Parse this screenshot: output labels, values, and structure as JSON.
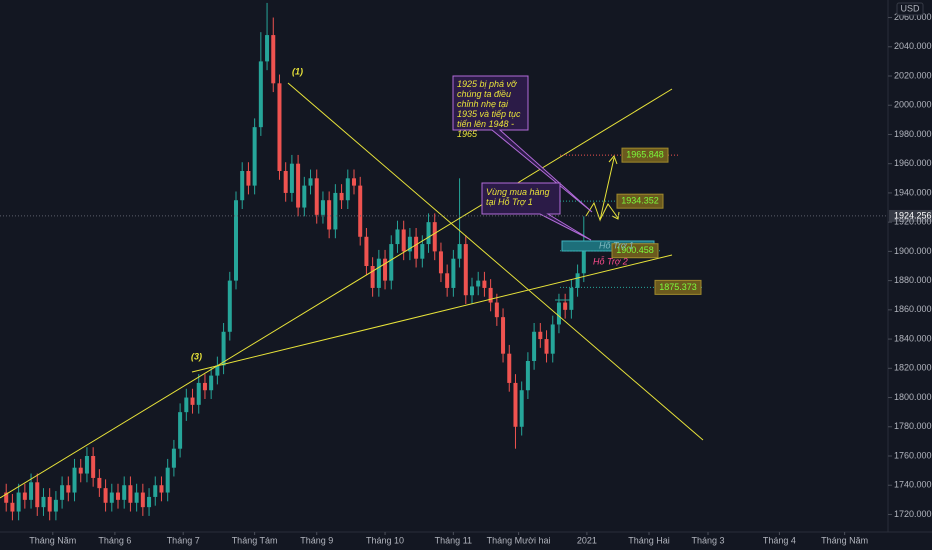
{
  "chart_data": {
    "type": "candlestick",
    "currency": "USD",
    "x": [
      2,
      4,
      6,
      8,
      10,
      12,
      14,
      16,
      18,
      20,
      22,
      24,
      26,
      28,
      30,
      32,
      34,
      36,
      38,
      40,
      42,
      44,
      46,
      48,
      50,
      52,
      54,
      56,
      58,
      60,
      62,
      64,
      66,
      68,
      70,
      72,
      74,
      76,
      78,
      80,
      82,
      84,
      86,
      88,
      90,
      92,
      94,
      96,
      98,
      100,
      102,
      104,
      106,
      108,
      110,
      112,
      114,
      116,
      118,
      120,
      122,
      124,
      126,
      128,
      130,
      132,
      134,
      136,
      138,
      140,
      142,
      144,
      146,
      148,
      150,
      152,
      154,
      156,
      158,
      160,
      162,
      164,
      166,
      168,
      170,
      172,
      174,
      176,
      178,
      180,
      182,
      184,
      186,
      188
    ],
    "open": [
      1735,
      1728,
      1722,
      1735,
      1730,
      1742,
      1725,
      1732,
      1722,
      1730,
      1740,
      1735,
      1752,
      1748,
      1760,
      1745,
      1738,
      1728,
      1735,
      1730,
      1740,
      1728,
      1735,
      1725,
      1732,
      1740,
      1735,
      1752,
      1765,
      1790,
      1800,
      1795,
      1810,
      1805,
      1815,
      1822,
      1845,
      1880,
      1935,
      1955,
      1945,
      1985,
      2030,
      2048,
      2015,
      1955,
      1940,
      1960,
      1930,
      1945,
      1950,
      1925,
      1935,
      1915,
      1940,
      1935,
      1950,
      1945,
      1910,
      1890,
      1875,
      1895,
      1880,
      1905,
      1915,
      1900,
      1910,
      1895,
      1905,
      1920,
      1900,
      1885,
      1875,
      1895,
      1905,
      1870,
      1876,
      1880,
      1875,
      1865,
      1855,
      1830,
      1810,
      1780,
      1805,
      1825,
      1845,
      1840,
      1830,
      1850,
      1865,
      1860,
      1875,
      1885
    ],
    "high": [
      1741,
      1734,
      1741,
      1741,
      1748,
      1748,
      1738,
      1738,
      1736,
      1746,
      1746,
      1758,
      1758,
      1766,
      1766,
      1751,
      1744,
      1741,
      1741,
      1746,
      1746,
      1741,
      1741,
      1738,
      1746,
      1746,
      1758,
      1771,
      1796,
      1806,
      1806,
      1816,
      1816,
      1821,
      1828,
      1851,
      1886,
      1941,
      1961,
      1961,
      1991,
      2050,
      2070,
      2060,
      2021,
      1961,
      1966,
      1966,
      1951,
      1956,
      1956,
      1941,
      1941,
      1946,
      1946,
      1956,
      1956,
      1951,
      1916,
      1896,
      1901,
      1901,
      1911,
      1921,
      1921,
      1916,
      1916,
      1911,
      1926,
      1926,
      1906,
      1891,
      1901,
      1950,
      1911,
      1882,
      1886,
      1886,
      1881,
      1871,
      1861,
      1836,
      1816,
      1811,
      1831,
      1851,
      1851,
      1846,
      1856,
      1871,
      1871,
      1881,
      1891,
      1924
    ],
    "low": [
      1722,
      1716,
      1716,
      1724,
      1724,
      1719,
      1719,
      1716,
      1716,
      1724,
      1729,
      1729,
      1742,
      1742,
      1739,
      1732,
      1722,
      1722,
      1724,
      1724,
      1722,
      1722,
      1719,
      1719,
      1726,
      1729,
      1729,
      1746,
      1759,
      1784,
      1789,
      1789,
      1799,
      1799,
      1809,
      1816,
      1839,
      1874,
      1929,
      1939,
      1939,
      1979,
      2024,
      2009,
      1949,
      1934,
      1934,
      1924,
      1924,
      1939,
      1919,
      1919,
      1909,
      1909,
      1929,
      1929,
      1939,
      1904,
      1884,
      1869,
      1869,
      1874,
      1874,
      1899,
      1894,
      1894,
      1889,
      1889,
      1899,
      1894,
      1879,
      1869,
      1869,
      1889,
      1864,
      1864,
      1870,
      1869,
      1859,
      1849,
      1824,
      1804,
      1765,
      1774,
      1799,
      1819,
      1834,
      1824,
      1824,
      1844,
      1854,
      1854,
      1869,
      1879
    ],
    "close": [
      1728,
      1722,
      1735,
      1730,
      1742,
      1725,
      1732,
      1722,
      1730,
      1740,
      1735,
      1752,
      1748,
      1760,
      1745,
      1738,
      1728,
      1735,
      1730,
      1740,
      1728,
      1735,
      1725,
      1732,
      1740,
      1735,
      1752,
      1765,
      1790,
      1800,
      1795,
      1810,
      1805,
      1815,
      1822,
      1845,
      1880,
      1935,
      1955,
      1945,
      1985,
      2030,
      2048,
      2015,
      1955,
      1940,
      1960,
      1930,
      1945,
      1950,
      1925,
      1935,
      1915,
      1940,
      1935,
      1950,
      1945,
      1910,
      1890,
      1875,
      1895,
      1880,
      1905,
      1915,
      1900,
      1910,
      1895,
      1905,
      1920,
      1900,
      1885,
      1875,
      1895,
      1905,
      1870,
      1876,
      1880,
      1875,
      1865,
      1855,
      1830,
      1810,
      1780,
      1805,
      1825,
      1845,
      1840,
      1830,
      1850,
      1865,
      1860,
      1875,
      1885,
      1905
    ],
    "up_color": "#26a69a",
    "down_color": "#ef5350",
    "xlim": [
      0,
      285
    ],
    "xticks": [
      {
        "value": 17,
        "label": "Tháng Năm"
      },
      {
        "value": 37,
        "label": "Tháng 6"
      },
      {
        "value": 59,
        "label": "Tháng 7"
      },
      {
        "value": 82,
        "label": "Tháng Tám"
      },
      {
        "value": 102,
        "label": "Tháng 9"
      },
      {
        "value": 124,
        "label": "Tháng 10"
      },
      {
        "value": 146,
        "label": "Tháng 11"
      },
      {
        "value": 167,
        "label": "Tháng Mười hai"
      },
      {
        "value": 189,
        "label": "2021"
      },
      {
        "value": 209,
        "label": "Tháng Hai"
      },
      {
        "value": 228,
        "label": "Tháng 3"
      },
      {
        "value": 251,
        "label": "Tháng 4"
      },
      {
        "value": 272,
        "label": "Tháng Năm"
      }
    ],
    "ylim": [
      1708,
      2072
    ],
    "yticks": [
      {
        "value": 1720,
        "label": "1720.000"
      },
      {
        "value": 1740,
        "label": "1740.000"
      },
      {
        "value": 1760,
        "label": "1760.000"
      },
      {
        "value": 1780,
        "label": "1780.000"
      },
      {
        "value": 1800,
        "label": "1800.000"
      },
      {
        "value": 1820,
        "label": "1820.000"
      },
      {
        "value": 1840,
        "label": "1840.000"
      },
      {
        "value": 1860,
        "label": "1860.000"
      },
      {
        "value": 1880,
        "label": "1880.000"
      },
      {
        "value": 1900,
        "label": "1900.000"
      },
      {
        "value": 1920,
        "label": "1920.000"
      },
      {
        "value": 1940,
        "label": "1940.000"
      },
      {
        "value": 1960,
        "label": "1960.000"
      },
      {
        "value": 1980,
        "label": "1980.000"
      },
      {
        "value": 2000,
        "label": "2000.000"
      },
      {
        "value": 2020,
        "label": "2020.000"
      },
      {
        "value": 2040,
        "label": "2040.000"
      },
      {
        "value": 2060,
        "label": "2060.000"
      }
    ],
    "last_price": 1924.256,
    "price_levels": [
      1965.848,
      1934.352,
      1900.458,
      1875.373
    ],
    "annotations": {
      "wave_1": "(1)",
      "wave_3": "(3)",
      "callout_breakout": "1925 bị phá vỡ chúng ta điều chỉnh nhẹ tại 1935 và tiếp tục tiến lên 1948 - 1965",
      "callout_buy_zone": "Vùng mua hàng tại Hỗ Trợ 1",
      "support_1": "Hỗ Trợ 1",
      "support_2": "Hỗ Trợ 2"
    }
  }
}
